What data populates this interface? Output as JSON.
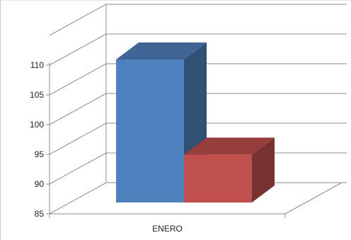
{
  "chart_data": {
    "type": "bar",
    "categories": [
      "ENERO"
    ],
    "series": [
      {
        "values": [
          110
        ],
        "color": "#4f81bd"
      },
      {
        "values": [
          94
        ],
        "color": "#c0504d"
      }
    ],
    "y_ticks": [
      "85",
      "90",
      "95",
      "100",
      "105",
      "110"
    ],
    "ylim": [
      85,
      115
    ],
    "grid": true,
    "legend": "none",
    "style": "3d"
  }
}
